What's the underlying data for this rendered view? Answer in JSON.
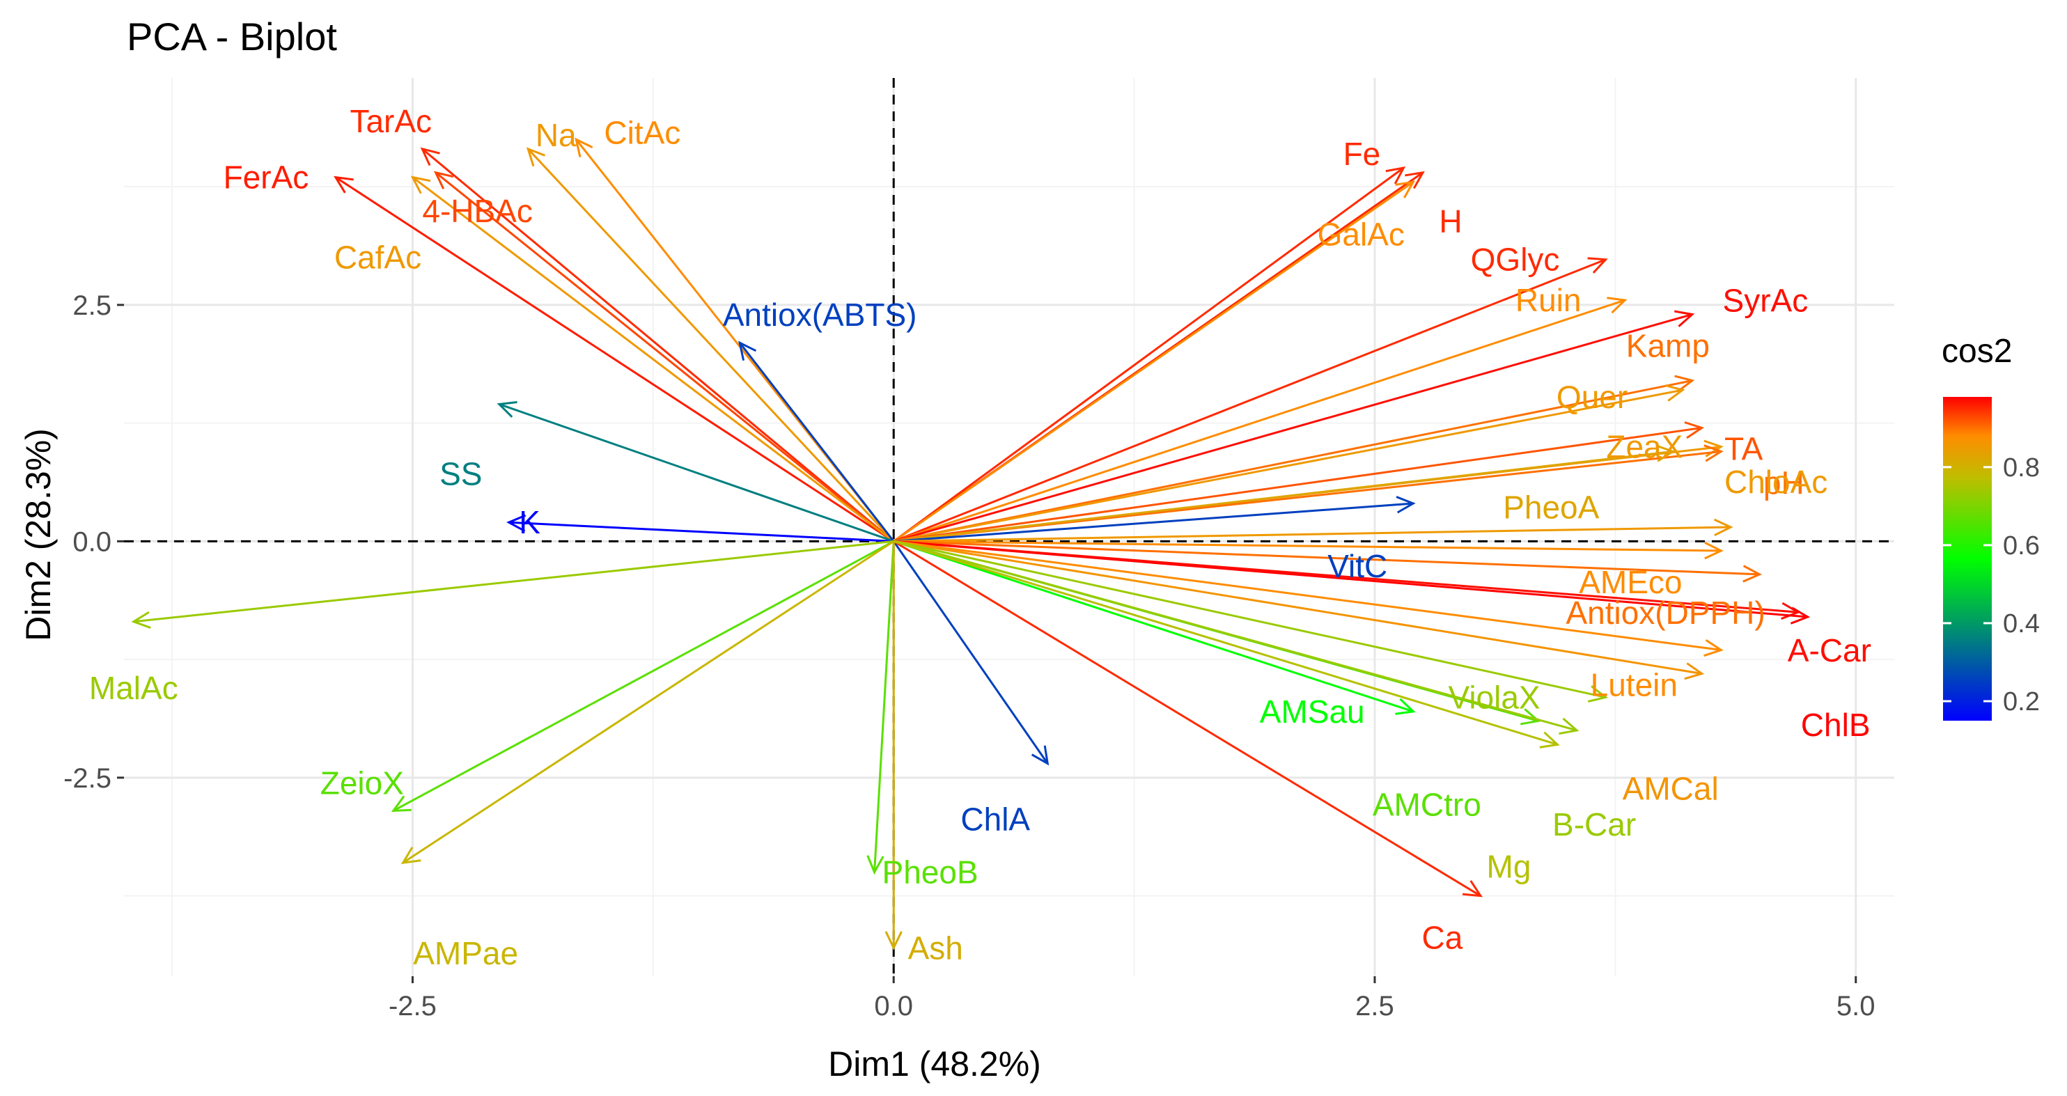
{
  "chart_data": {
    "type": "scatter",
    "subtype": "pca-biplot-variable-arrows",
    "title": "PCA - Biplot",
    "xlabel": "Dim1 (48.2%)",
    "ylabel": "Dim2 (28.3%)",
    "xlim": [
      -4.0,
      5.2
    ],
    "ylim": [
      -4.6,
      4.9
    ],
    "x_ticks": [
      -2.5,
      0.0,
      2.5,
      5.0
    ],
    "x_tick_labels": [
      "-2.5",
      "0.0",
      "2.5",
      "5.0"
    ],
    "y_ticks": [
      -2.5,
      0.0,
      2.5
    ],
    "y_tick_labels": [
      "-2.5",
      "0.0",
      "2.5"
    ],
    "grid": true,
    "reference_lines": {
      "x": 0,
      "y": 0,
      "style": "dashed"
    },
    "legend": {
      "title": "cos2",
      "placement": "right",
      "type": "gradient",
      "range": [
        0.15,
        0.98
      ],
      "breaks": [
        0.2,
        0.4,
        0.6,
        0.8
      ],
      "break_labels": [
        "0.2",
        "0.4",
        "0.6",
        "0.8"
      ],
      "gradient_colors": [
        "#0000FF",
        "#00FF00",
        "#FF0000"
      ]
    },
    "variables": [
      {
        "name": "TarAc",
        "x": -2.45,
        "y": 4.15,
        "cos2": 0.95
      },
      {
        "name": "Na",
        "x": -1.9,
        "y": 4.15,
        "cos2": 0.85
      },
      {
        "name": "CitAc",
        "x": -1.65,
        "y": 4.25,
        "cos2": 0.88
      },
      {
        "name": "FerAc",
        "x": -2.9,
        "y": 3.85,
        "cos2": 0.96
      },
      {
        "name": "4-HBAc",
        "x": -2.38,
        "y": 3.9,
        "cos2": 0.93
      },
      {
        "name": "CafAc",
        "x": -2.5,
        "y": 3.85,
        "cos2": 0.85
      },
      {
        "name": "Antiox(ABTS)",
        "x": -0.8,
        "y": 2.1,
        "cos2": 0.25
      },
      {
        "name": "SS",
        "x": -2.05,
        "y": 1.45,
        "cos2": 0.35
      },
      {
        "name": "K",
        "x": -2.0,
        "y": 0.2,
        "cos2": 0.15
      },
      {
        "name": "MalAc",
        "x": -3.95,
        "y": -0.85,
        "cos2": 0.72
      },
      {
        "name": "ZeioX",
        "x": -2.6,
        "y": -2.85,
        "cos2": 0.65
      },
      {
        "name": "AMPae",
        "x": -2.55,
        "y": -3.4,
        "cos2": 0.78
      },
      {
        "name": "ChlA",
        "x": 0.8,
        "y": -2.35,
        "cos2": 0.25
      },
      {
        "name": "PheoB",
        "x": -0.1,
        "y": -3.5,
        "cos2": 0.65
      },
      {
        "name": "Ash",
        "x": 0.0,
        "y": -4.3,
        "cos2": 0.8
      },
      {
        "name": "Ca",
        "x": 3.05,
        "y": -3.75,
        "cos2": 0.95
      },
      {
        "name": "Fe",
        "x": 2.65,
        "y": 3.95,
        "cos2": 0.95
      },
      {
        "name": "H",
        "x": 2.75,
        "y": 3.9,
        "cos2": 0.95
      },
      {
        "name": "GalAc",
        "x": 2.7,
        "y": 3.8,
        "cos2": 0.88
      },
      {
        "name": "QGlyc",
        "x": 3.7,
        "y": 2.98,
        "cos2": 0.95
      },
      {
        "name": "Ruin",
        "x": 3.8,
        "y": 2.55,
        "cos2": 0.88
      },
      {
        "name": "SyrAc",
        "x": 4.15,
        "y": 2.4,
        "cos2": 0.97
      },
      {
        "name": "Kamp",
        "x": 4.15,
        "y": 1.7,
        "cos2": 0.9
      },
      {
        "name": "Quer",
        "x": 4.1,
        "y": 1.6,
        "cos2": 0.85
      },
      {
        "name": "TA",
        "x": 4.2,
        "y": 1.2,
        "cos2": 0.92
      },
      {
        "name": "ZeaX",
        "x": 4.3,
        "y": 1.0,
        "cos2": 0.85
      },
      {
        "name": "pH",
        "x": 4.3,
        "y": 0.95,
        "cos2": 0.9
      },
      {
        "name": "PheoA",
        "x": 4.05,
        "y": 0.95,
        "cos2": 0.82
      },
      {
        "name": "VitC",
        "x": 2.7,
        "y": 0.4,
        "cos2": 0.25
      },
      {
        "name": "ChloAc",
        "x": 4.35,
        "y": 0.15,
        "cos2": 0.85
      },
      {
        "name": "AMEco",
        "x": 4.3,
        "y": -0.1,
        "cos2": 0.88
      },
      {
        "name": "Antiox(DPPH)",
        "x": 4.5,
        "y": -0.35,
        "cos2": 0.9
      },
      {
        "name": "A-Car",
        "x": 4.7,
        "y": -0.75,
        "cos2": 0.97
      },
      {
        "name": "ChlB",
        "x": 4.75,
        "y": -0.8,
        "cos2": 0.98
      },
      {
        "name": "Lutein",
        "x": 4.3,
        "y": -1.15,
        "cos2": 0.88
      },
      {
        "name": "AMCal",
        "x": 4.2,
        "y": -1.4,
        "cos2": 0.86
      },
      {
        "name": "ViolaX",
        "x": 3.7,
        "y": -1.65,
        "cos2": 0.72
      },
      {
        "name": "AMSau",
        "x": 2.7,
        "y": -1.8,
        "cos2": 0.55
      },
      {
        "name": "AMCtro",
        "x": 3.35,
        "y": -1.9,
        "cos2": 0.65
      },
      {
        "name": "B-Car",
        "x": 3.55,
        "y": -2.0,
        "cos2": 0.72
      },
      {
        "name": "Mg",
        "x": 3.45,
        "y": -2.15,
        "cos2": 0.75
      }
    ]
  }
}
